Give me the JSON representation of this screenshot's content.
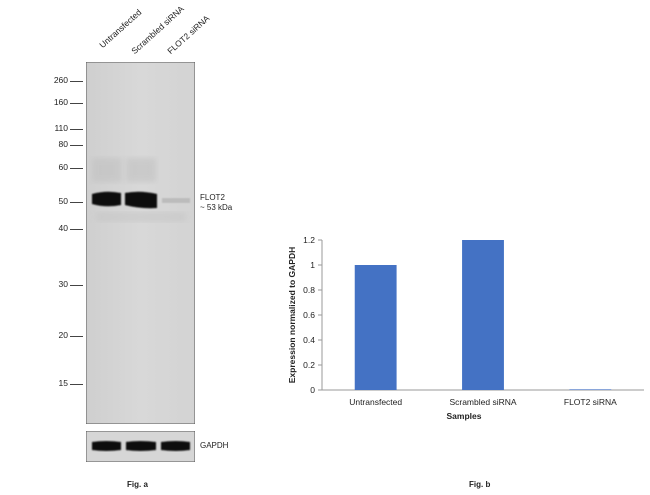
{
  "figure_a": {
    "lane_labels": [
      "Untransfected",
      "Scrambled siRNA",
      "FLOT2 siRNA"
    ],
    "markers": [
      "260",
      "160",
      "110",
      "80",
      "60",
      "50",
      "40",
      "30",
      "20",
      "15"
    ],
    "band_label_line1": "FLOT2",
    "band_label_line2": "~ 53 kDa",
    "loading_control_label": "GAPDH",
    "caption": "Fig. a"
  },
  "chart_data": {
    "type": "bar",
    "categories": [
      "Untransfected",
      "Scrambled siRNA",
      "FLOT2 siRNA"
    ],
    "values": [
      1.0,
      1.2,
      0.005
    ],
    "ylabel": "Expression normalized to GAPDH",
    "xlabel": "Samples",
    "ylim": [
      0,
      1.2
    ],
    "yticks": [
      "0",
      "0.2",
      "0.4",
      "0.6",
      "0.8",
      "1",
      "1.2"
    ],
    "grid": false,
    "bar_color": "#4472c4"
  },
  "figure_b": {
    "caption": "Fig. b"
  }
}
